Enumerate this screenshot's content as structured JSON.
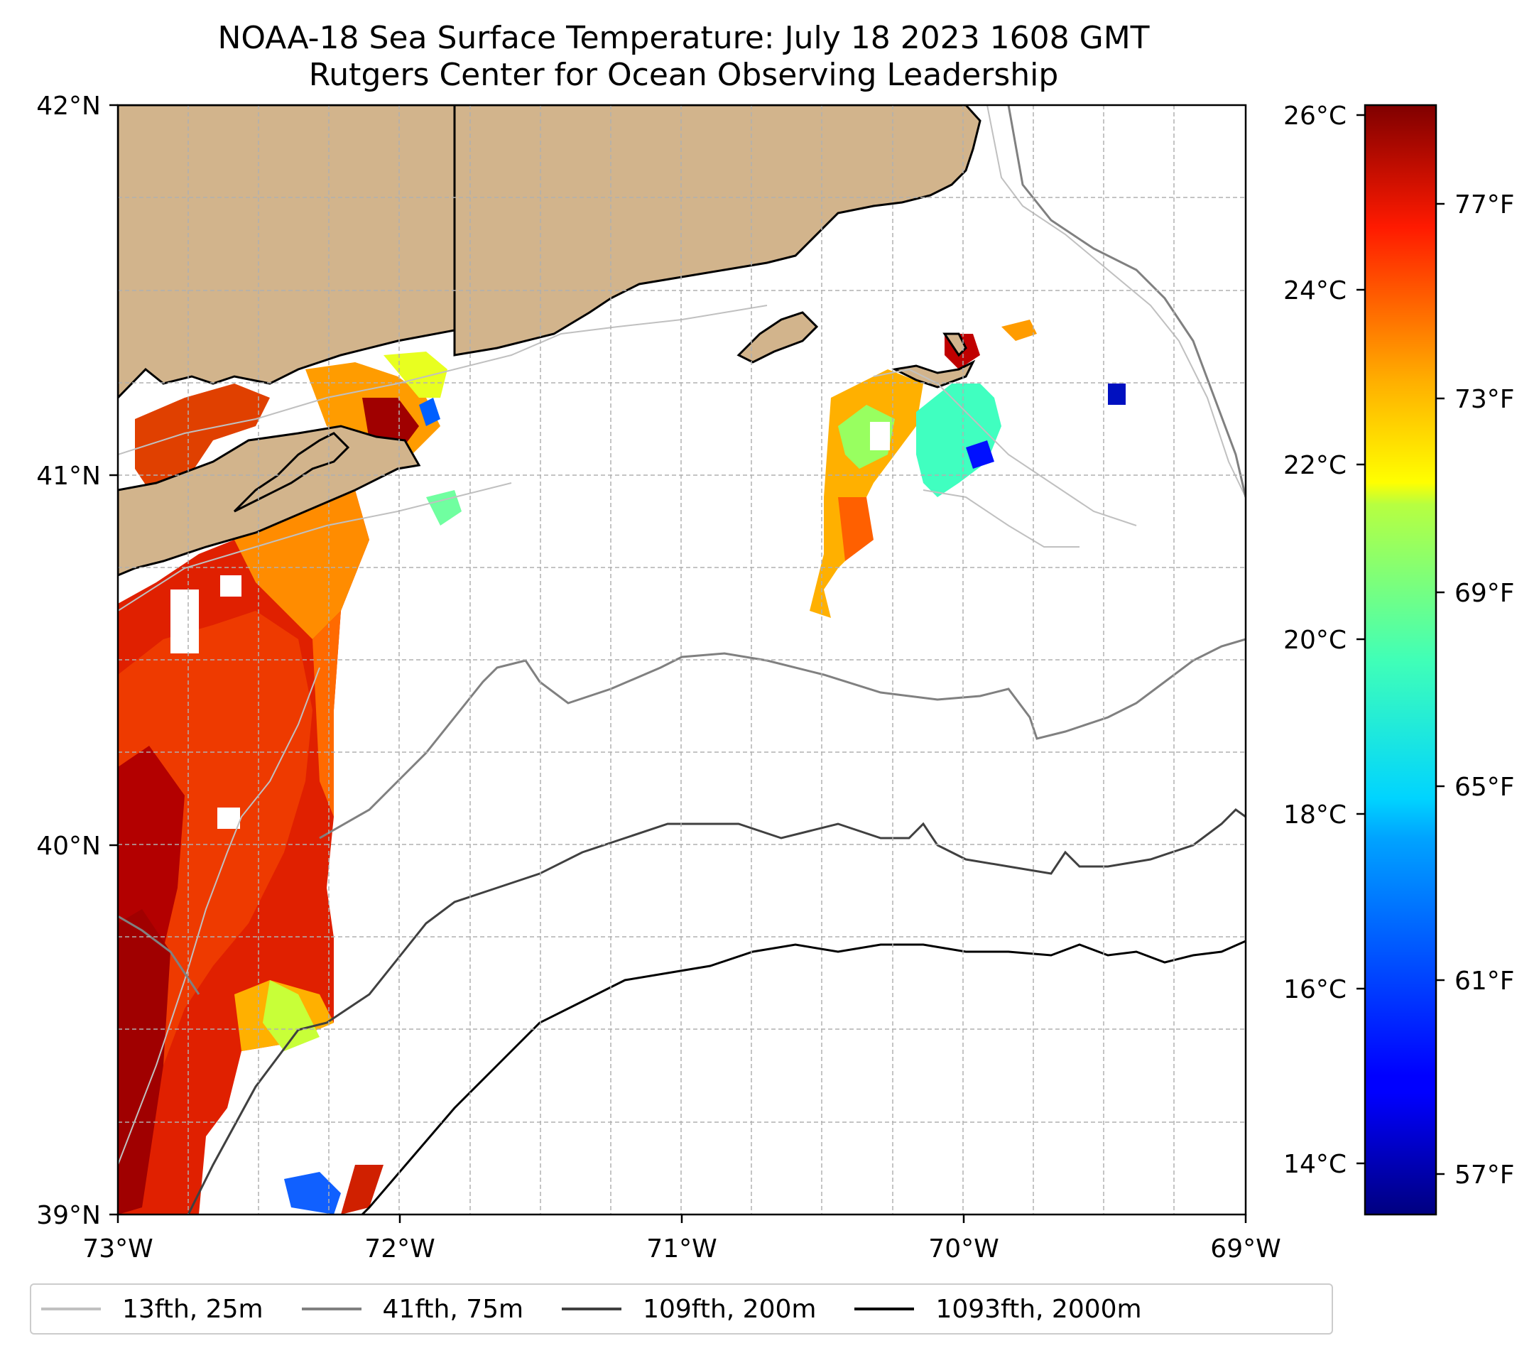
{
  "title": {
    "line1": "NOAA-18 Sea Surface Temperature: July 18 2023 1608 GMT",
    "line2": "Rutgers Center for Ocean Observing Leadership"
  },
  "map": {
    "lon_range": [
      -73,
      -69
    ],
    "lat_range": [
      39,
      42
    ],
    "x_ticks": [
      "73°W",
      "72°W",
      "71°W",
      "70°W",
      "69°W"
    ],
    "y_ticks": [
      "39°N",
      "40°N",
      "41°N",
      "42°N"
    ],
    "gridlines": true,
    "land_color": "#d2b48c",
    "ocean_color": "#ffffff"
  },
  "colorbar": {
    "celsius_range": [
      13.5,
      26.2
    ],
    "celsius_ticks": [
      "14°C",
      "16°C",
      "18°C",
      "20°C",
      "22°C",
      "24°C",
      "26°C"
    ],
    "fahrenheit_ticks": [
      "57°F",
      "61°F",
      "65°F",
      "69°F",
      "73°F",
      "77°F"
    ],
    "colormap": "jet"
  },
  "legend": {
    "items": [
      {
        "label": "13fth, 25m",
        "color": "#c0c0c0"
      },
      {
        "label": "41fth, 75m",
        "color": "#808080"
      },
      {
        "label": "109fth, 200m",
        "color": "#404040"
      },
      {
        "label": "1093fth, 2000m",
        "color": "#000000"
      }
    ]
  }
}
